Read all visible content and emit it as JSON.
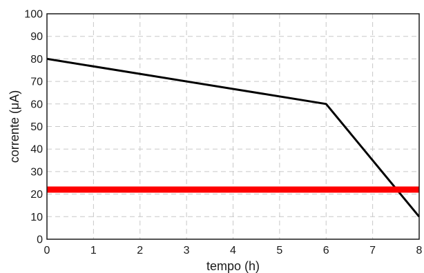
{
  "chart_data": {
    "type": "line",
    "title": "",
    "xlabel": "tempo (h)",
    "ylabel": "corrente (μA)",
    "xlim": [
      0,
      8
    ],
    "ylim": [
      0,
      100
    ],
    "x_ticks": [
      0,
      1,
      2,
      3,
      4,
      5,
      6,
      7,
      8
    ],
    "y_ticks": [
      0,
      10,
      20,
      30,
      40,
      50,
      60,
      70,
      80,
      90,
      100
    ],
    "grid": true,
    "series": [
      {
        "color": "#000000",
        "points": [
          {
            "x": 0,
            "y": 80
          },
          {
            "x": 6,
            "y": 60
          },
          {
            "x": 8,
            "y": 10
          }
        ]
      },
      {
        "color": "#ff0000",
        "points": [
          {
            "x": 0,
            "y": 22
          },
          {
            "x": 8,
            "y": 22
          }
        ]
      }
    ]
  }
}
